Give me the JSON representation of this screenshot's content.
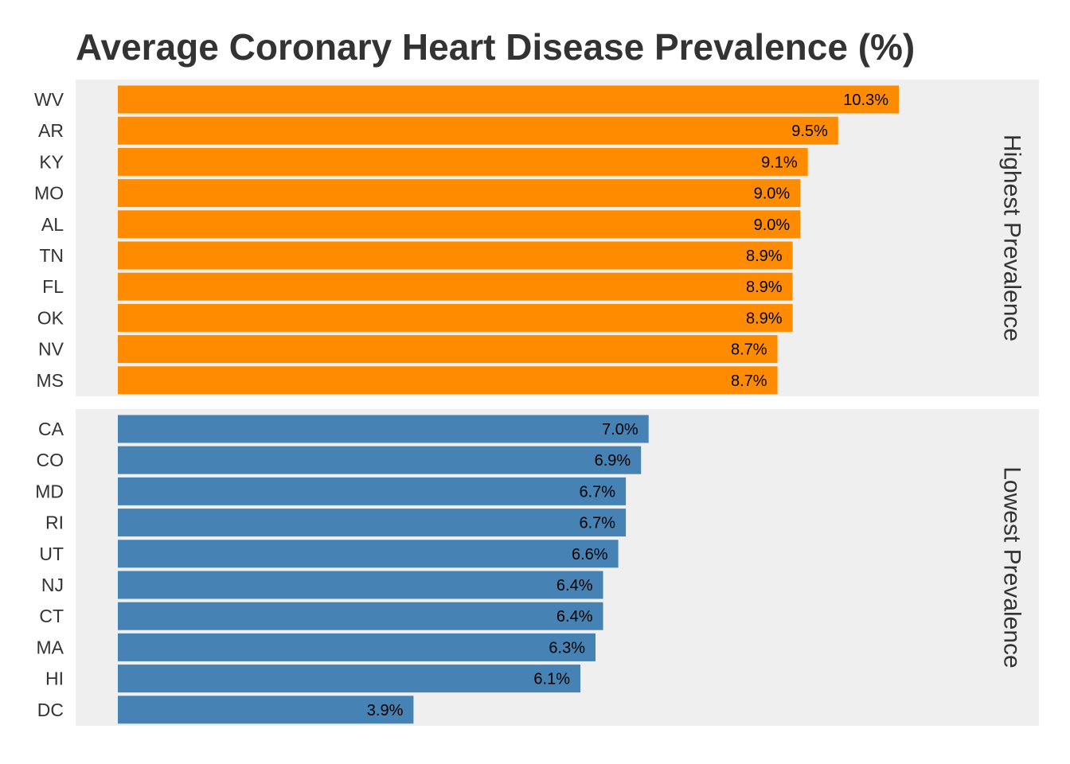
{
  "chart_data": {
    "type": "bar",
    "orientation": "horizontal",
    "title": "Average Coronary Heart Disease Prevalence (%)",
    "xlabel": "",
    "ylabel": "",
    "grid": false,
    "legend": "none",
    "value_format": "{v}%",
    "panels": [
      {
        "strip_label": "Highest Prevalence",
        "color": "#ff8c00",
        "categories": [
          "WV",
          "AR",
          "KY",
          "MO",
          "AL",
          "TN",
          "FL",
          "OK",
          "NV",
          "MS"
        ],
        "values": [
          10.3,
          9.5,
          9.1,
          9.0,
          9.0,
          8.9,
          8.9,
          8.9,
          8.7,
          8.7
        ],
        "value_labels": [
          "10.3%",
          "9.5%",
          "9.1%",
          "9.0%",
          "9.0%",
          "8.9%",
          "8.9%",
          "8.9%",
          "8.7%",
          "8.7%"
        ]
      },
      {
        "strip_label": "Lowest Prevalence",
        "color": "#4682b4",
        "categories": [
          "CA",
          "CO",
          "MD",
          "RI",
          "UT",
          "NJ",
          "CT",
          "MA",
          "HI",
          "DC"
        ],
        "values": [
          7.0,
          6.9,
          6.7,
          6.7,
          6.6,
          6.4,
          6.4,
          6.3,
          6.1,
          3.9
        ],
        "value_labels": [
          "7.0%",
          "6.9%",
          "6.7%",
          "6.7%",
          "6.6%",
          "6.4%",
          "6.4%",
          "6.3%",
          "6.1%",
          "3.9%"
        ]
      }
    ]
  }
}
